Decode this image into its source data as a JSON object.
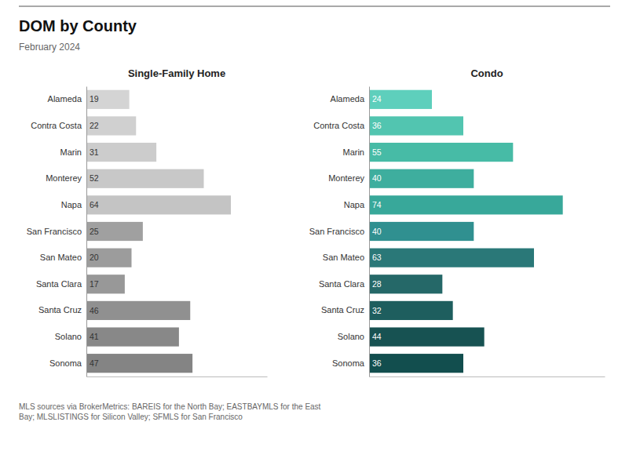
{
  "title": "DOM by County",
  "subtitle": "February 2024",
  "annotations": [
    "MLS sources via BrokerMetrics: BAREIS for the North Bay; EASTBAYMLS for the East",
    "Bay; MLSLISTINGS for Silicon Valley; SFMLS for San Francisco"
  ],
  "chart_data": [
    {
      "type": "bar",
      "orientation": "horizontal",
      "title": "Single-Family Home",
      "categories": [
        "Alameda",
        "Contra Costa",
        "Marin",
        "Monterey",
        "Napa",
        "San Francisco",
        "San Mateo",
        "Santa Clara",
        "Santa Cruz",
        "Solano",
        "Sonoma"
      ],
      "values": [
        19,
        22,
        31,
        52,
        64,
        25,
        20,
        17,
        46,
        41,
        47
      ],
      "colors": [
        "#d4d4d4",
        "#d0d0d0",
        "#cccccc",
        "#c8c8c8",
        "#c4c4c4",
        "#a0a0a0",
        "#9c9c9c",
        "#989898",
        "#909090",
        "#888888",
        "#848484"
      ],
      "xlim": [
        0,
        80
      ],
      "data_labels": true,
      "tick_labels": "y",
      "grid": false
    },
    {
      "type": "bar",
      "orientation": "horizontal",
      "title": "Condo",
      "categories": [
        "Alameda",
        "Contra Costa",
        "Marin",
        "Monterey",
        "Napa",
        "San Francisco",
        "San Mateo",
        "Santa Clara",
        "Santa Cruz",
        "Solano",
        "Sonoma"
      ],
      "values": [
        24,
        36,
        55,
        40,
        74,
        40,
        63,
        28,
        32,
        44,
        36
      ],
      "colors": [
        "#5ecfbc",
        "#52c5b0",
        "#47bba6",
        "#3eae9e",
        "#38a89a",
        "#309090",
        "#2a7878",
        "#256868",
        "#1e5e5e",
        "#175252",
        "#124e4e"
      ],
      "xlim": [
        0,
        90
      ],
      "data_labels": true,
      "tick_labels": "y",
      "grid": false
    }
  ]
}
